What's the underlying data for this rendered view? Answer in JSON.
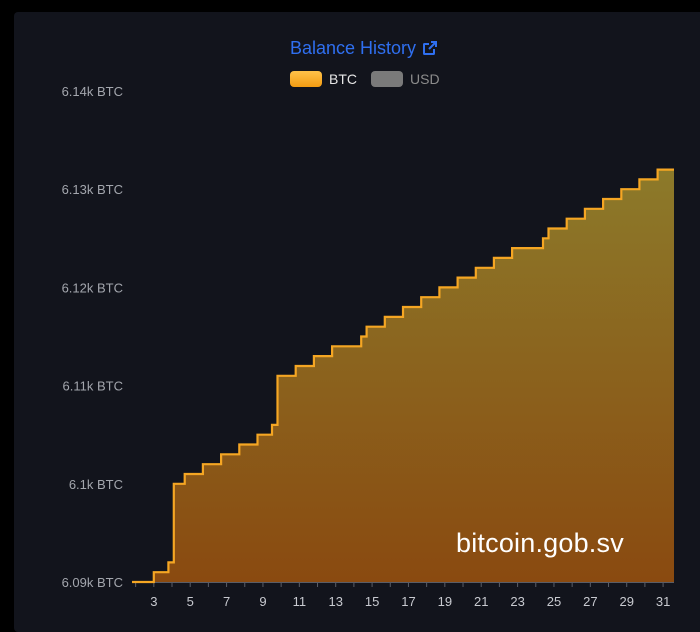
{
  "header": {
    "title": "Balance History",
    "link_icon": "external-link-icon"
  },
  "legend": [
    {
      "label": "BTC",
      "color": "#f5a623",
      "active": true
    },
    {
      "label": "USD",
      "color": "#7a7a7a",
      "active": false
    }
  ],
  "watermark": "bitcoin.gob.sv",
  "chart_data": {
    "type": "area",
    "step": true,
    "title": "Balance History",
    "xlabel": "",
    "ylabel": "",
    "x_ticks": [
      "3",
      "5",
      "7",
      "9",
      "11",
      "13",
      "15",
      "17",
      "19",
      "21",
      "23",
      "25",
      "27",
      "29",
      "31"
    ],
    "xlim": [
      1.8,
      31.6
    ],
    "y_ticks": [
      "6.09k BTC",
      "6.1k BTC",
      "6.11k BTC",
      "6.12k BTC",
      "6.13k BTC",
      "6.14k BTC"
    ],
    "ylim": [
      6090,
      6140
    ],
    "series": [
      {
        "name": "BTC",
        "color": "#f5a623",
        "x": [
          1.8,
          3,
          3.8,
          4.1,
          4.7,
          5.7,
          6.7,
          7.7,
          8.7,
          9.5,
          9.8,
          10.8,
          11.8,
          12.8,
          14.4,
          14.7,
          15.7,
          16.7,
          17.7,
          18.7,
          19.7,
          20.7,
          21.7,
          22.7,
          23.7,
          24.4,
          24.7,
          25.7,
          26.7,
          27.7,
          28.7,
          29.7,
          30.7,
          31.6
        ],
        "values": [
          6090,
          6091,
          6092,
          6100,
          6101,
          6102,
          6103,
          6104,
          6105,
          6106,
          6111,
          6112,
          6113,
          6114,
          6115,
          6116,
          6117,
          6118,
          6119,
          6120,
          6121,
          6122,
          6123,
          6124,
          6124,
          6125,
          6126,
          6127,
          6128,
          6129,
          6130,
          6131,
          6132,
          6132
        ]
      }
    ],
    "grid": false,
    "legend_position": "top-center"
  },
  "colors": {
    "background": "#12141c",
    "title": "#2f6ff0",
    "line": "#f5a623",
    "fill_top": "#8c7a2a",
    "fill_bottom": "#8a4a10"
  }
}
